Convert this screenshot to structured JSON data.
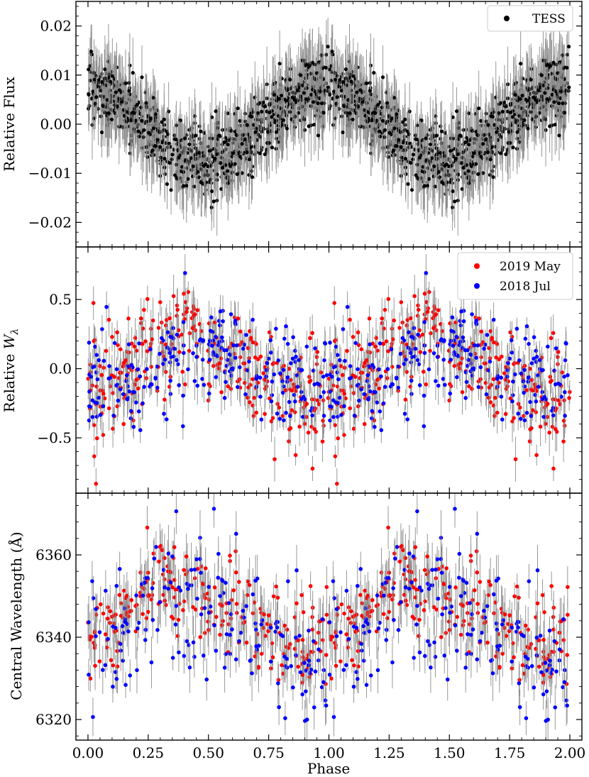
{
  "chart_data": [
    {
      "type": "scatter",
      "panel": "top",
      "ylabel": "Relative Flux",
      "xlim": [
        -0.05,
        2.05
      ],
      "ylim": [
        -0.025,
        0.025
      ],
      "yticks": [
        -0.02,
        -0.01,
        0.0,
        0.01,
        0.02
      ],
      "ytick_labels": [
        "−0.02",
        "−0.01",
        "0.00",
        "0.01",
        "0.02"
      ],
      "legend": {
        "position": "top-right",
        "entries": [
          {
            "label": "TESS",
            "color": "#000000"
          }
        ]
      },
      "series": [
        {
          "name": "TESS",
          "color": "#000000",
          "model": "sinusoid",
          "period_phase": 1.0,
          "amplitude": 0.0075,
          "peak_phase": 0.98,
          "scatter_sigma": 0.0035,
          "error_bar": 0.0055,
          "n_points": 900
        }
      ]
    },
    {
      "type": "scatter",
      "panel": "middle",
      "ylabel": "Relative Wλ",
      "xlim": [
        -0.05,
        2.05
      ],
      "ylim": [
        -0.9,
        0.88
      ],
      "yticks": [
        -0.5,
        0.0,
        0.5
      ],
      "ytick_labels": [
        "−0.5",
        "0.0",
        "0.5"
      ],
      "legend": {
        "position": "top-right",
        "entries": [
          {
            "label": "2019 May",
            "color": "#ff0000"
          },
          {
            "label": "2018 Jul",
            "color": "#0000ff"
          }
        ]
      },
      "series": [
        {
          "name": "2019 May",
          "color": "#ff0000",
          "model": "sinusoid",
          "amplitude": 0.22,
          "peak_phase": 0.42,
          "scatter_sigma": 0.2,
          "error_bar": 0.12,
          "n_points": 290
        },
        {
          "name": "2018 Jul",
          "color": "#0000ff",
          "model": "sinusoid",
          "amplitude": 0.15,
          "peak_phase": 0.5,
          "scatter_sigma": 0.17,
          "error_bar": 0.1,
          "n_points": 240
        }
      ]
    },
    {
      "type": "scatter",
      "panel": "bottom",
      "ylabel": "Central Wavelength (Å)",
      "xlabel": "Phase",
      "xlim": [
        -0.05,
        2.05
      ],
      "ylim": [
        6315,
        6375
      ],
      "yticks": [
        6320,
        6340,
        6360
      ],
      "ytick_labels": [
        "6320",
        "6340",
        "6360"
      ],
      "xticks": [
        0.0,
        0.25,
        0.5,
        0.75,
        1.0,
        1.25,
        1.5,
        1.75,
        2.0
      ],
      "xtick_labels": [
        "0.00",
        "0.25",
        "0.50",
        "0.75",
        "1.00",
        "1.25",
        "1.50",
        "1.75",
        "2.00"
      ],
      "series": [
        {
          "name": "2019 May",
          "color": "#ff0000",
          "model": "sinusoid",
          "mean": 6345,
          "amplitude": 8,
          "peak_phase": 0.38,
          "scatter_sigma": 6,
          "error_bar": 5,
          "n_points": 230
        },
        {
          "name": "2018 Jul",
          "color": "#0000ff",
          "model": "sinusoid",
          "mean": 6342,
          "amplitude": 9,
          "peak_phase": 0.42,
          "scatter_sigma": 8,
          "error_bar": 5,
          "n_points": 170
        }
      ]
    }
  ]
}
